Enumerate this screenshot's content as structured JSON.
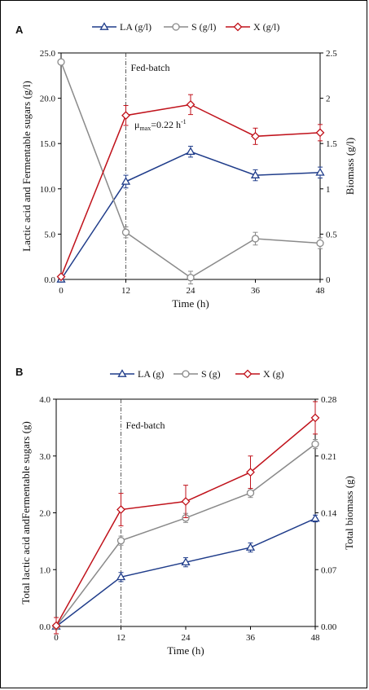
{
  "chart_data": [
    {
      "panel_label": "A",
      "type": "line",
      "x": [
        0,
        12,
        24,
        36,
        48
      ],
      "xlabel": "Time (h)",
      "ylabel": "Lactic acid and Fermentable sugars (g/l)",
      "y2label": "Biomass (g/l)",
      "ylim": [
        0,
        25
      ],
      "y2lim": [
        0,
        2.5
      ],
      "xticks": [
        "0",
        "12",
        "24",
        "36",
        "48"
      ],
      "yticks": [
        "0.0",
        "5.0",
        "10.0",
        "15.0",
        "20.0",
        "25.0"
      ],
      "y2ticks": [
        "0",
        "0.5",
        "1",
        "1.5",
        "2",
        "2.5"
      ],
      "legend_position": "top",
      "annotations": {
        "fed_batch_at": 12,
        "fed_batch_label": "Fed-batch",
        "mu_prefix": "μ",
        "mu_sub": "max",
        "mu_value": "=0.22 h",
        "mu_sup": "-1"
      },
      "series": [
        {
          "name": "LA (g/l)",
          "axis": "left",
          "color": "#1f3c8a",
          "marker": "triangle",
          "values": [
            0,
            10.8,
            14.1,
            11.5,
            11.8
          ],
          "errors": [
            0,
            0.7,
            0.6,
            0.6,
            0.6
          ]
        },
        {
          "name": "S (g/l)",
          "axis": "left",
          "color": "#8a8a8a",
          "marker": "circle",
          "values": [
            24.0,
            5.2,
            0.2,
            4.5,
            4.0
          ],
          "errors": [
            0,
            0.6,
            0.7,
            0.7,
            0.6
          ]
        },
        {
          "name": "X (g/l)",
          "axis": "right",
          "color": "#c0121b",
          "marker": "diamond",
          "values": [
            0.03,
            1.81,
            1.93,
            1.58,
            1.62
          ],
          "errors": [
            0,
            0.11,
            0.11,
            0.09,
            0.09
          ]
        }
      ]
    },
    {
      "panel_label": "B",
      "type": "line",
      "x": [
        0,
        12,
        24,
        36,
        48
      ],
      "xlabel": "Time (h)",
      "ylabel": "Total lactic acid andFermentable sugars (g)",
      "y2label": "Total biomass (g)",
      "ylim": [
        0,
        4
      ],
      "y2lim": [
        0,
        0.28
      ],
      "xticks": [
        "0",
        "12",
        "24",
        "36",
        "48"
      ],
      "yticks": [
        "0.0",
        "1.0",
        "2.0",
        "3.0",
        "4.0"
      ],
      "y2ticks": [
        "0.00",
        "0.07",
        "0.14",
        "0.21",
        "0.28"
      ],
      "legend_position": "top",
      "annotations": {
        "fed_batch_at": 12,
        "fed_batch_label": "Fed-batch"
      },
      "series": [
        {
          "name": "LA (g)",
          "axis": "left",
          "color": "#1f3c8a",
          "marker": "triangle",
          "values": [
            0,
            0.87,
            1.13,
            1.39,
            1.9
          ],
          "errors": [
            0,
            0.08,
            0.08,
            0.08,
            0.06
          ]
        },
        {
          "name": "S (g)",
          "axis": "left",
          "color": "#8a8a8a",
          "marker": "circle",
          "values": [
            0,
            1.51,
            1.91,
            2.35,
            3.21
          ],
          "errors": [
            0,
            0.08,
            0.08,
            0.08,
            0.08
          ]
        },
        {
          "name": "X (g)",
          "axis": "right",
          "color": "#c0121b",
          "marker": "diamond",
          "values": [
            0.001,
            0.144,
            0.154,
            0.19,
            0.257
          ],
          "errors": [
            0.01,
            0.02,
            0.02,
            0.02,
            0.02
          ]
        }
      ]
    }
  ]
}
